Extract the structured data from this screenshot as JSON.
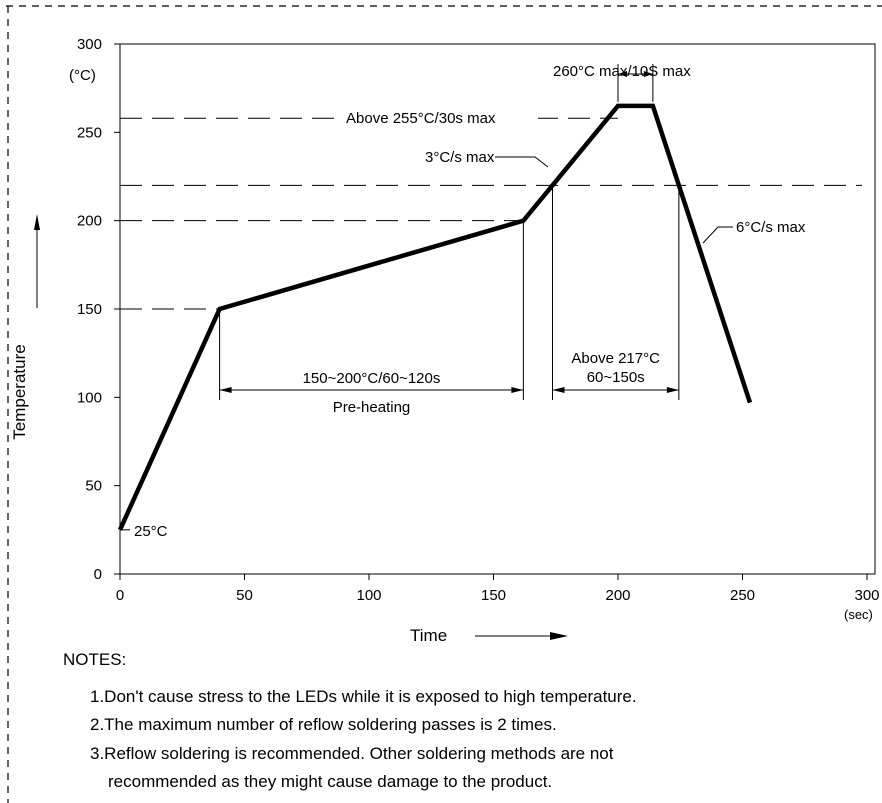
{
  "chart_data": {
    "type": "line",
    "xlabel": "Time",
    "ylabel": "Temperature",
    "x_unit": "(sec)",
    "y_unit": "(°C)",
    "xlim": [
      0,
      300
    ],
    "ylim": [
      0,
      300
    ],
    "x_ticks": [
      0,
      50,
      100,
      150,
      200,
      250,
      300
    ],
    "y_ticks": [
      0,
      50,
      100,
      150,
      200,
      250,
      300
    ],
    "grid": false,
    "series": [
      {
        "x": [
          0,
          40,
          162,
          200,
          214,
          253
        ],
        "y": [
          25,
          150,
          200,
          265,
          265,
          97
        ]
      }
    ],
    "reference_lines": [
      {
        "y": 258,
        "label": "Above 255°C/30s max"
      },
      {
        "y": 220,
        "label": ""
      },
      {
        "y": 200,
        "label": ""
      },
      {
        "y": 150,
        "label": ""
      }
    ],
    "annotations": {
      "start_temp": "25°C",
      "peak": "260°C max/10S max",
      "ramp_up": "3°C/s max",
      "ramp_down": "6°C/s max",
      "preheat_range": "150~200°C/60~120s",
      "preheat_label": "Pre-heating",
      "above217_line1": "Above 217°C",
      "above217_line2": "60~150s"
    }
  },
  "notes": {
    "heading": "NOTES:",
    "items": [
      "1.Don't cause stress to the LEDs while it  is exposed to high  temperature.",
      "2.The maximum number of reflow soldering passes is 2 times.",
      "3.Reflow soldering is recommended. Other soldering methods are not",
      "recommended as they might cause damage to the product."
    ]
  }
}
